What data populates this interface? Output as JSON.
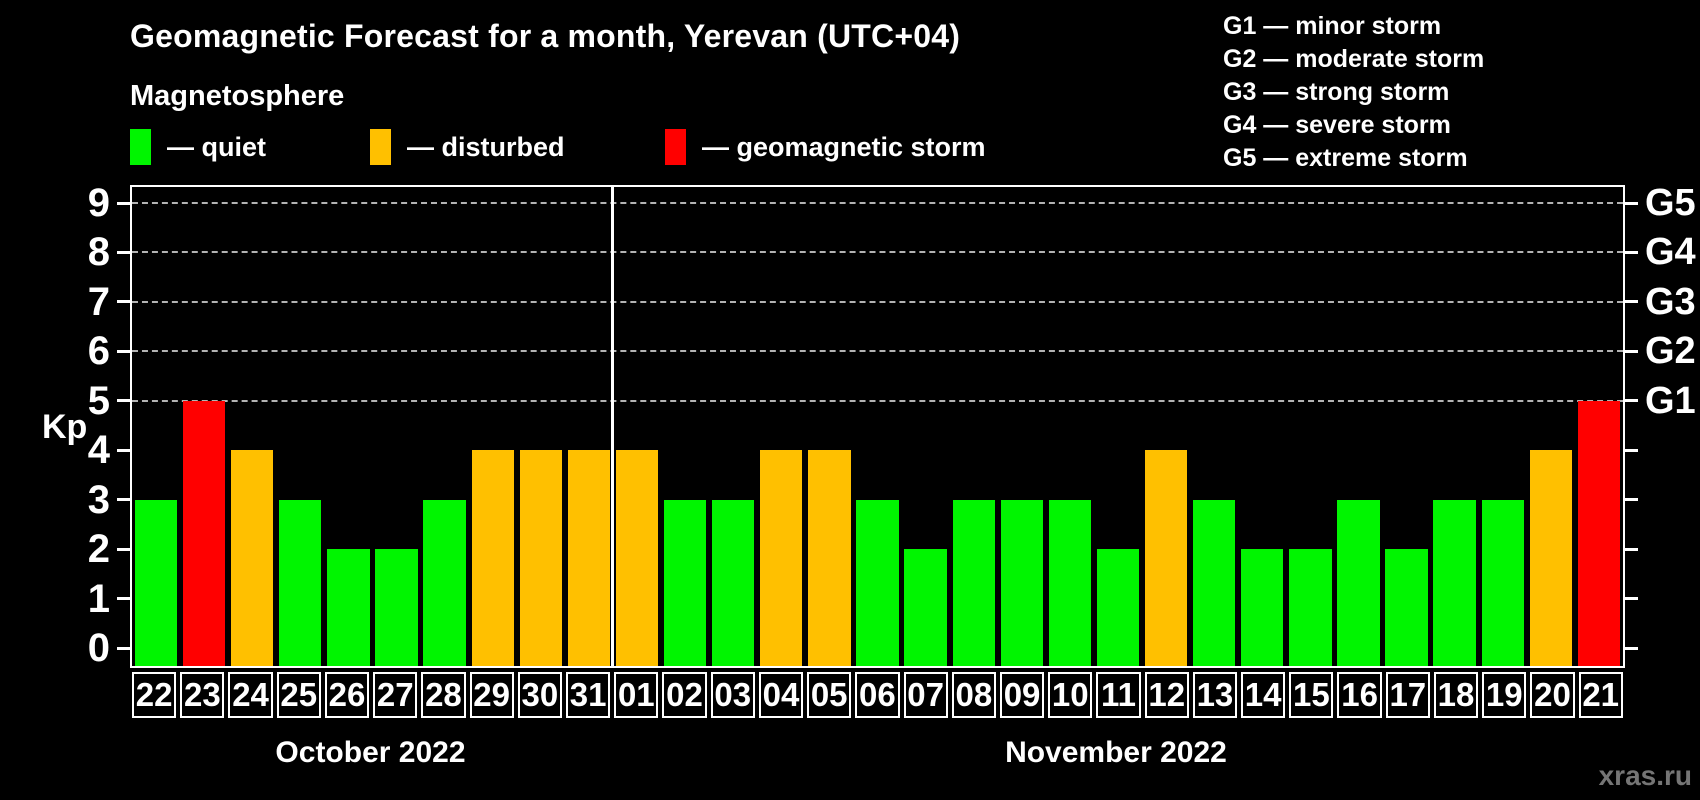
{
  "title": "Geomagnetic Forecast for a month, Yerevan (UTC+04)",
  "subtitle": "Magnetosphere",
  "legend": {
    "items": [
      {
        "name": "quiet",
        "label": "— quiet",
        "color": "#00f500"
      },
      {
        "name": "disturbed",
        "label": "— disturbed",
        "color": "#ffc000"
      },
      {
        "name": "storm",
        "label": "— geomagnetic storm",
        "color": "#ff0000"
      }
    ]
  },
  "storm_scale_legend": {
    "items": [
      "G1 — minor storm",
      "G2 — moderate storm",
      "G3 — strong storm",
      "G4 — severe storm",
      "G5 — extreme storm"
    ]
  },
  "watermark": "xras.ru",
  "chart_data": {
    "type": "bar",
    "title": "Geomagnetic Forecast for a month, Yerevan (UTC+04)",
    "ylabel": "Kp",
    "ylim": [
      0,
      9
    ],
    "yticks": [
      0,
      1,
      2,
      3,
      4,
      5,
      6,
      7,
      8,
      9
    ],
    "gridlines_at": [
      5,
      6,
      7,
      8,
      9
    ],
    "grid_style": "dashed",
    "right_axis_labels": [
      {
        "kp": 5,
        "label": "G1"
      },
      {
        "kp": 6,
        "label": "G2"
      },
      {
        "kp": 7,
        "label": "G3"
      },
      {
        "kp": 8,
        "label": "G4"
      },
      {
        "kp": 9,
        "label": "G5"
      }
    ],
    "months": [
      {
        "label": "October 2022",
        "days": 10
      },
      {
        "label": "November 2022",
        "days": 21
      }
    ],
    "categories": [
      "22",
      "23",
      "24",
      "25",
      "26",
      "27",
      "28",
      "29",
      "30",
      "31",
      "01",
      "02",
      "03",
      "04",
      "05",
      "06",
      "07",
      "08",
      "09",
      "10",
      "11",
      "12",
      "13",
      "14",
      "15",
      "16",
      "17",
      "18",
      "19",
      "20",
      "21"
    ],
    "values": [
      3,
      5,
      4,
      3,
      2,
      2,
      3,
      4,
      4,
      4,
      4,
      3,
      3,
      4,
      4,
      3,
      2,
      3,
      3,
      3,
      2,
      4,
      3,
      2,
      2,
      3,
      2,
      3,
      3,
      4,
      5
    ],
    "statuses": [
      "quiet",
      "storm",
      "disturbed",
      "quiet",
      "quiet",
      "quiet",
      "quiet",
      "disturbed",
      "disturbed",
      "disturbed",
      "disturbed",
      "quiet",
      "quiet",
      "disturbed",
      "disturbed",
      "quiet",
      "quiet",
      "quiet",
      "quiet",
      "quiet",
      "quiet",
      "disturbed",
      "quiet",
      "quiet",
      "quiet",
      "quiet",
      "quiet",
      "quiet",
      "quiet",
      "disturbed",
      "storm"
    ],
    "colors": {
      "quiet": "#00f500",
      "disturbed": "#ffc000",
      "storm": "#ff0000"
    },
    "background": "#000000",
    "axis_color": "#ffffff",
    "grid_color": "#b3b3b3"
  }
}
